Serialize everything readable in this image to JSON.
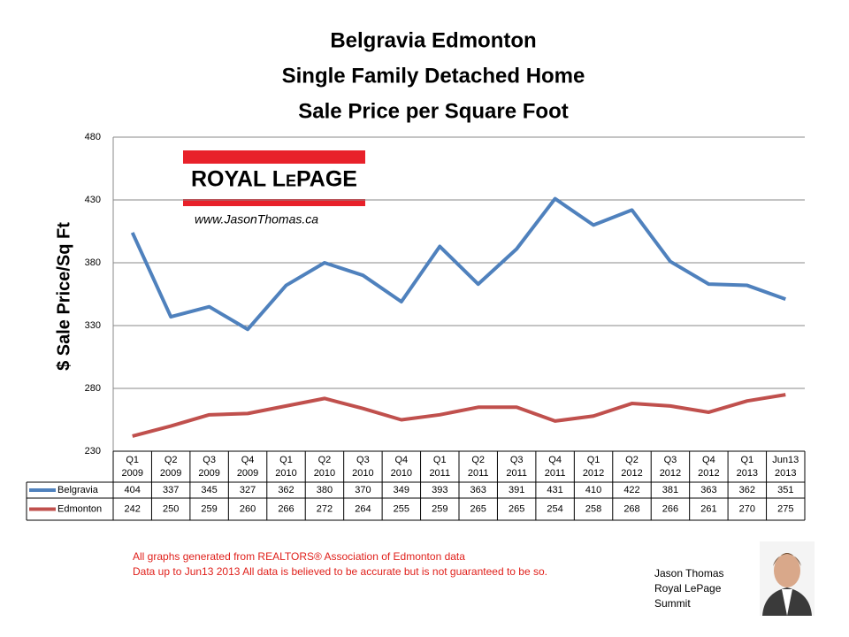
{
  "chart_data": {
    "type": "line",
    "title": "Belgravia Edmonton",
    "subtitle": [
      "Single Family Detached Home",
      "Sale Price per Square Foot"
    ],
    "ylabel": "$ Sale Price/Sq Ft",
    "categories": [
      [
        "Q1",
        "2009"
      ],
      [
        "Q2",
        "2009"
      ],
      [
        "Q3",
        "2009"
      ],
      [
        "Q4",
        "2009"
      ],
      [
        "Q1",
        "2010"
      ],
      [
        "Q2",
        "2010"
      ],
      [
        "Q3",
        "2010"
      ],
      [
        "Q4",
        "2010"
      ],
      [
        "Q1",
        "2011"
      ],
      [
        "Q2",
        "2011"
      ],
      [
        "Q3",
        "2011"
      ],
      [
        "Q4",
        "2011"
      ],
      [
        "Q1",
        "2012"
      ],
      [
        "Q2",
        "2012"
      ],
      [
        "Q3",
        "2012"
      ],
      [
        "Q4",
        "2012"
      ],
      [
        "Q1",
        "2013"
      ],
      [
        "Jun13",
        "2013"
      ]
    ],
    "series": [
      {
        "name": "Belgravia",
        "color": "#4f81bd",
        "values": [
          404,
          337,
          345,
          327,
          362,
          380,
          370,
          349,
          393,
          363,
          391,
          431,
          410,
          422,
          381,
          363,
          362,
          351
        ]
      },
      {
        "name": "Edmonton",
        "color": "#c0504d",
        "values": [
          242,
          250,
          259,
          260,
          266,
          272,
          264,
          255,
          259,
          265,
          265,
          254,
          258,
          268,
          266,
          261,
          270,
          275
        ]
      }
    ],
    "ylim": [
      230,
      480
    ],
    "yticks": [
      230,
      280,
      330,
      380,
      430,
      480
    ],
    "grid": true
  },
  "logo": {
    "brand": "ROYAL LePAGE",
    "website": "www.JasonThomas.ca"
  },
  "footnote": [
    "All graphs generated from REALTORS® Association of Edmonton data",
    "Data up to  Jun13 2013  All data is believed to be accurate but is not guaranteed to be so."
  ],
  "signature": [
    "Jason Thomas",
    "Royal LePage",
    "Summit"
  ]
}
